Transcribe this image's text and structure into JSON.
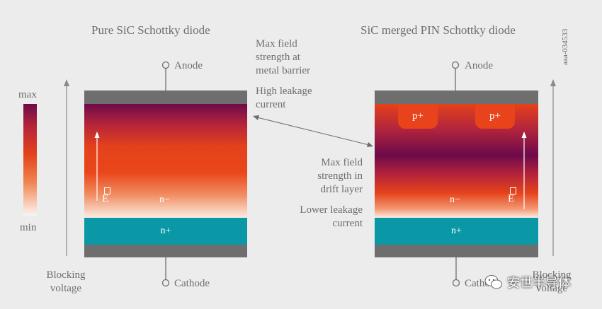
{
  "left_title": "Pure SiC Schottky diode",
  "right_title": "SiC merged PIN Schottky diode",
  "doc_id": "aaa-034533",
  "anode": "Anode",
  "cathode": "Cathode",
  "n_minus": "n−",
  "n_plus": "n+",
  "p_plus": "p+",
  "field_symbol": "E",
  "scale_max": "max",
  "scale_min": "min",
  "blocking_left": [
    "Blocking",
    "voltage"
  ],
  "blocking_right": [
    "Blocking",
    "voltage"
  ],
  "annotation_top": [
    "Max field",
    "strength at",
    "metal barrier"
  ],
  "annotation_top_leakage": [
    "High leakage",
    "current"
  ],
  "annotation_bottom": [
    "Max field",
    "strength in",
    "drift layer"
  ],
  "annotation_bottom_leakage": [
    "Lower leakage",
    "current"
  ],
  "watermark": "安世半导体",
  "colors": {
    "metal": "#6e6e6e",
    "n_plus": "#0b98a6",
    "p_plus": "#e8431b",
    "field_max": "#6d0a4a",
    "field_mid": "#e4421b",
    "field_min": "#fbece4",
    "background": "#ececec"
  }
}
